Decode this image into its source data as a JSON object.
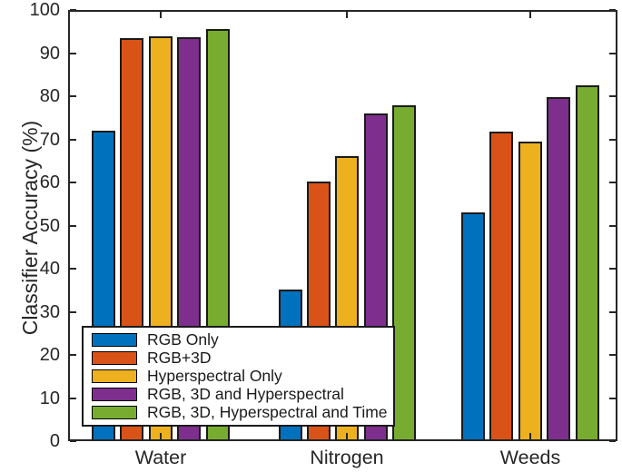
{
  "chart_data": {
    "type": "bar",
    "title": "",
    "xlabel": "",
    "ylabel": "Classifier Accuracy (%)",
    "ylim": [
      0,
      100
    ],
    "yticks": [
      0,
      10,
      20,
      30,
      40,
      50,
      60,
      70,
      80,
      90,
      100
    ],
    "grid": false,
    "legend_position": "lower-left-inside",
    "axis_color": "#262626",
    "bar_edge_color": "#1a1a1a",
    "categories": [
      "Water",
      "Nitrogen",
      "Weeds"
    ],
    "series": [
      {
        "name": "RGB Only",
        "color": "#0072BD",
        "values": [
          72.0,
          35.2,
          53.1
        ]
      },
      {
        "name": "RGB+3D",
        "color": "#D95319",
        "values": [
          93.4,
          60.3,
          71.8
        ]
      },
      {
        "name": "Hyperspectral Only",
        "color": "#EDB120",
        "values": [
          93.8,
          66.2,
          69.5
        ]
      },
      {
        "name": "RGB, 3D and Hyperspectral",
        "color": "#7E2F8E",
        "values": [
          93.6,
          76.1,
          79.8
        ]
      },
      {
        "name": "RGB, 3D, Hyperspectral and Time",
        "color": "#77AC30",
        "values": [
          95.6,
          77.9,
          82.6
        ]
      }
    ]
  }
}
